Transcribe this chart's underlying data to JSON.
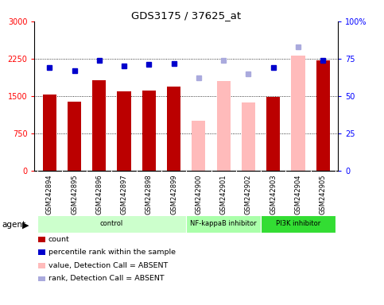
{
  "title": "GDS3175 / 37625_at",
  "samples": [
    "GSM242894",
    "GSM242895",
    "GSM242896",
    "GSM242897",
    "GSM242898",
    "GSM242899",
    "GSM242900",
    "GSM242901",
    "GSM242902",
    "GSM242903",
    "GSM242904",
    "GSM242905"
  ],
  "bar_values": [
    1530,
    1390,
    1820,
    1590,
    1610,
    1690,
    1010,
    1810,
    1370,
    1480,
    2310,
    2220
  ],
  "bar_colors": [
    "#bb0000",
    "#bb0000",
    "#bb0000",
    "#bb0000",
    "#bb0000",
    "#bb0000",
    "#ffbbbb",
    "#ffbbbb",
    "#ffbbbb",
    "#bb0000",
    "#ffbbbb",
    "#bb0000"
  ],
  "rank_values": [
    69,
    67,
    74,
    70,
    71,
    72,
    62,
    74,
    65,
    69,
    83,
    74
  ],
  "rank_colors": [
    "#0000cc",
    "#0000cc",
    "#0000cc",
    "#0000cc",
    "#0000cc",
    "#0000cc",
    "#aaaadd",
    "#aaaadd",
    "#aaaadd",
    "#0000cc",
    "#aaaadd",
    "#0000cc"
  ],
  "ylim_left": [
    0,
    3000
  ],
  "ylim_right": [
    0,
    100
  ],
  "yticks_left": [
    0,
    750,
    1500,
    2250,
    3000
  ],
  "yticks_right": [
    0,
    25,
    50,
    75,
    100
  ],
  "ytick_labels_left": [
    "0",
    "750",
    "1500",
    "2250",
    "3000"
  ],
  "ytick_labels_right": [
    "0",
    "25",
    "50",
    "75",
    "100%"
  ],
  "agent_groups": [
    {
      "label": "control",
      "start": 0,
      "end": 6,
      "color": "#ccffcc"
    },
    {
      "label": "NF-kappaB inhibitor",
      "start": 6,
      "end": 9,
      "color": "#aaffaa"
    },
    {
      "label": "PI3K inhibitor",
      "start": 9,
      "end": 12,
      "color": "#33dd33"
    }
  ],
  "legend_items": [
    {
      "label": "count",
      "color": "#bb0000"
    },
    {
      "label": "percentile rank within the sample",
      "color": "#0000cc"
    },
    {
      "label": "value, Detection Call = ABSENT",
      "color": "#ffbbbb"
    },
    {
      "label": "rank, Detection Call = ABSENT",
      "color": "#aaaadd"
    }
  ],
  "bar_width": 0.55,
  "marker_size": 5
}
